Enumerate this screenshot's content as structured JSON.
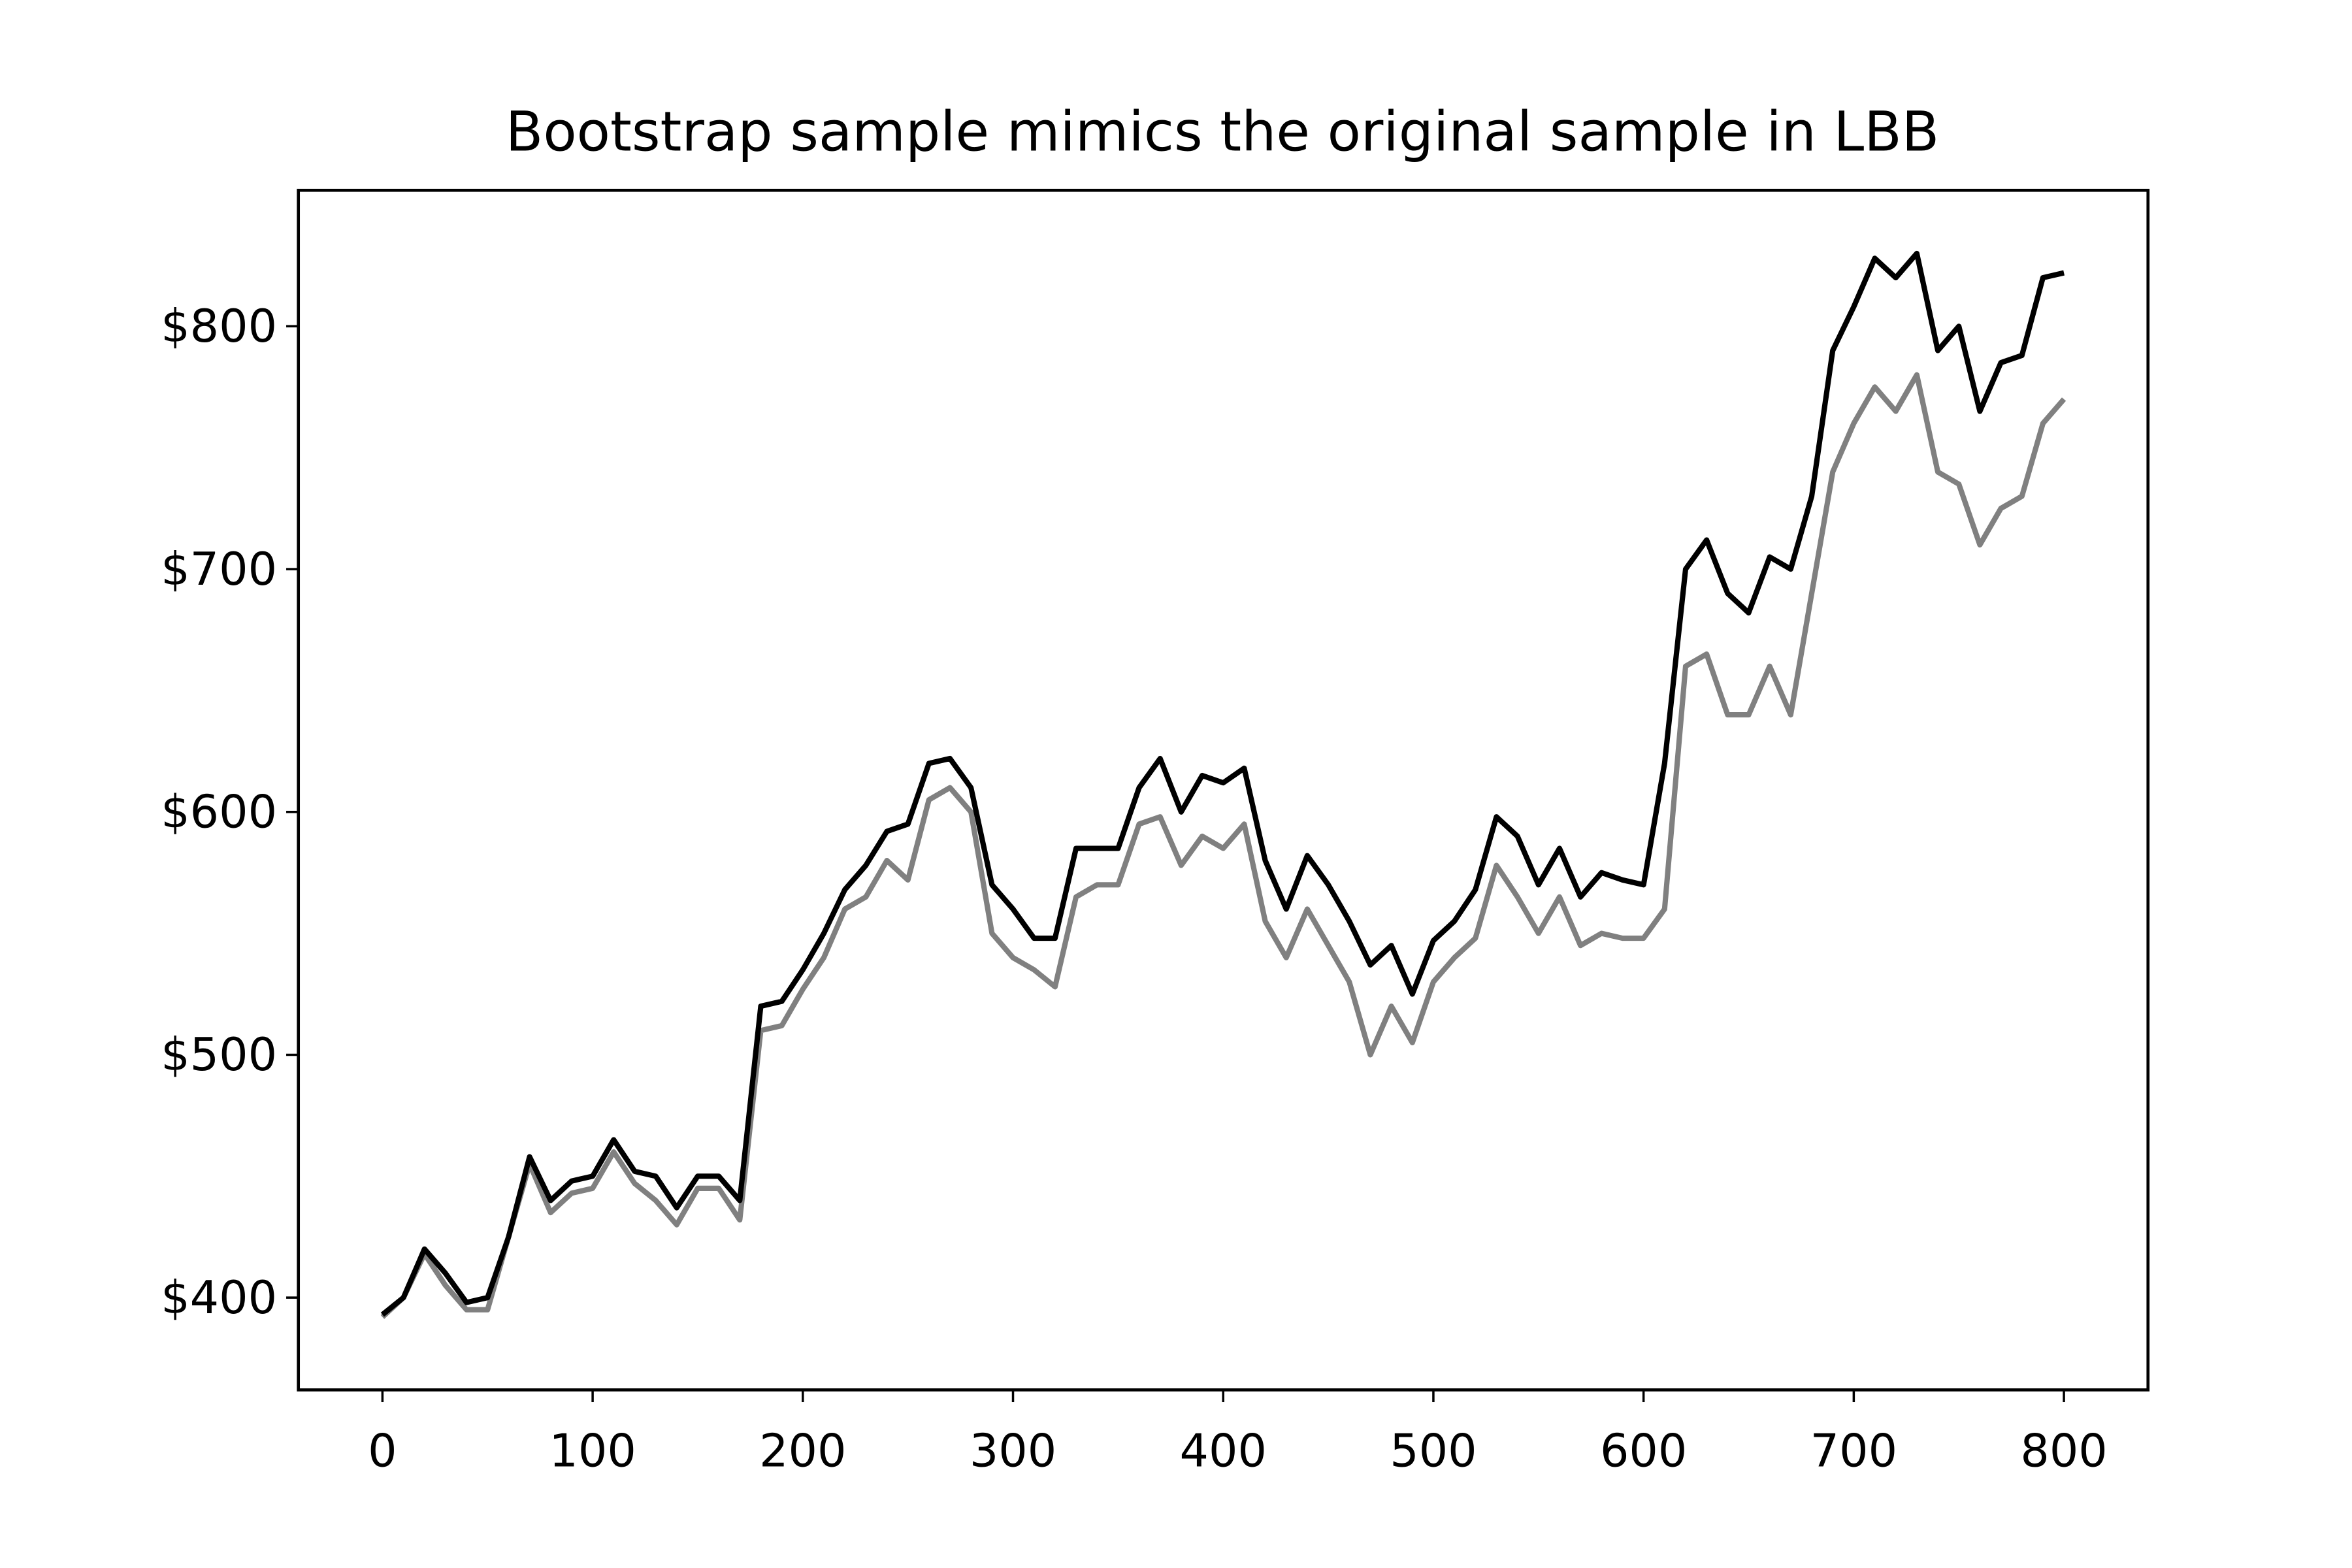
{
  "chart_data": {
    "type": "line",
    "title": "Bootstrap sample mimics the original sample in LBB",
    "x": [
      0,
      10,
      20,
      30,
      40,
      50,
      60,
      70,
      80,
      90,
      100,
      110,
      120,
      130,
      140,
      150,
      160,
      170,
      180,
      190,
      200,
      210,
      220,
      230,
      240,
      250,
      260,
      270,
      280,
      290,
      300,
      310,
      320,
      330,
      340,
      350,
      360,
      370,
      380,
      390,
      400,
      410,
      420,
      430,
      440,
      450,
      460,
      470,
      480,
      490,
      500,
      510,
      520,
      530,
      540,
      550,
      560,
      570,
      580,
      590,
      600,
      610,
      620,
      630,
      640,
      650,
      660,
      670,
      680,
      690,
      700,
      710,
      720,
      730,
      740,
      750,
      760,
      770,
      780,
      790,
      800
    ],
    "series": [
      {
        "color": "#000000",
        "values": [
          393,
          400,
          420,
          410,
          398,
          400,
          425,
          458,
          440,
          448,
          450,
          465,
          452,
          450,
          437,
          450,
          450,
          440,
          520,
          522,
          535,
          550,
          568,
          578,
          592,
          595,
          620,
          622,
          610,
          570,
          560,
          548,
          548,
          585,
          585,
          585,
          610,
          622,
          600,
          615,
          612,
          618,
          580,
          560,
          582,
          570,
          555,
          537,
          545,
          525,
          547,
          555,
          568,
          598,
          590,
          570,
          585,
          565,
          575,
          572,
          570,
          620,
          700,
          712,
          690,
          682,
          705,
          700,
          730,
          790,
          808,
          828,
          820,
          830,
          790,
          800,
          765,
          785,
          788,
          820,
          822
        ]
      },
      {
        "color": "#808080",
        "values": [
          392,
          400,
          418,
          405,
          395,
          395,
          425,
          455,
          435,
          443,
          445,
          460,
          447,
          440,
          430,
          445,
          445,
          432,
          510,
          512,
          527,
          540,
          560,
          565,
          580,
          572,
          605,
          610,
          600,
          550,
          540,
          535,
          528,
          565,
          570,
          570,
          595,
          598,
          578,
          590,
          585,
          595,
          555,
          540,
          560,
          545,
          530,
          500,
          520,
          505,
          530,
          540,
          548,
          578,
          565,
          550,
          565,
          545,
          550,
          548,
          548,
          560,
          660,
          665,
          640,
          640,
          660,
          640,
          690,
          740,
          760,
          775,
          765,
          780,
          740,
          735,
          710,
          725,
          730,
          760,
          770
        ]
      }
    ],
    "xlim": [
      -40,
      840
    ],
    "ylim": [
      362,
      856
    ],
    "xticks": [
      0,
      100,
      200,
      300,
      400,
      500,
      600,
      700,
      800
    ],
    "yticks": [
      {
        "value": 400,
        "label": "$400"
      },
      {
        "value": 500,
        "label": "$500"
      },
      {
        "value": 600,
        "label": "$600"
      },
      {
        "value": 700,
        "label": "$700"
      },
      {
        "value": 800,
        "label": "$800"
      }
    ]
  }
}
